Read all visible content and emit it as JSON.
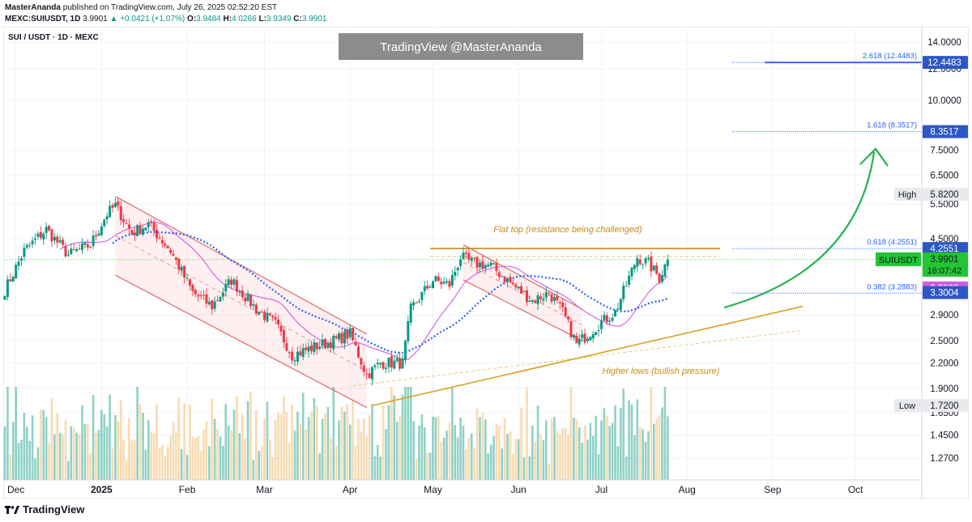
{
  "header": {
    "author": "MasterAnanda",
    "published": "published on TradingView.com, July 26, 2025 02:52:20 EST",
    "symbol_line": "MEXC:SUIUSDT, 1D",
    "last": "3.9901",
    "change": "+0.0421 (+1.07%)",
    "o_label": "O:",
    "o": "3.9484",
    "h_label": "H:",
    "h": "4.0266",
    "l_label": "L:",
    "l": "3.9349",
    "c_label": "C:",
    "c": "3.9901"
  },
  "chart_title": "SUI / USDT · 1D · MEXC",
  "watermark": "TradingView @MasterAnanda",
  "footer": {
    "brand": "TradingView",
    "logo_icon": "tradingview-logo-icon"
  },
  "colors": {
    "up": "#089981",
    "down": "#f23645",
    "sma_blue": "#2962ff",
    "ma_pink": "#d05ce3",
    "resistance": "#c78b18",
    "support": "#d8a020",
    "arrow": "#22b24c",
    "fib": "#2962ff",
    "channel": "#e05c5c",
    "price_label": "#22c533",
    "sma_label": "#2c57c5",
    "ma_label": "#d05ce3"
  },
  "chart_data": {
    "type": "candlestick",
    "scale": "log",
    "ylim": [
      1.12,
      15.3
    ],
    "y_ticks": [
      "14.0000",
      "12.0000",
      "10.0000",
      "7.5000",
      "6.5000",
      "5.5000",
      "4.5000",
      "2.9000",
      "2.5000",
      "2.2000",
      "1.9000",
      "1.6500",
      "1.4500",
      "1.2700"
    ],
    "x_ticks": [
      "Dec",
      "2025",
      "Feb",
      "Mar",
      "Apr",
      "May",
      "Jun",
      "Jul",
      "Aug",
      "Sep",
      "Oct"
    ],
    "x_range": [
      "2024-11-27",
      "2025-10-25"
    ],
    "anchors": [
      {
        "date": "2024-11-27",
        "close": 3.35
      },
      {
        "date": "2024-12-04",
        "close": 4.2
      },
      {
        "date": "2024-12-12",
        "close": 4.75
      },
      {
        "date": "2024-12-20",
        "close": 4.1
      },
      {
        "date": "2024-12-28",
        "close": 4.35
      },
      {
        "date": "2025-01-03",
        "close": 5.2
      },
      {
        "date": "2025-01-06",
        "close": 5.45
      },
      {
        "date": "2025-01-12",
        "close": 4.65
      },
      {
        "date": "2025-01-18",
        "close": 4.9
      },
      {
        "date": "2025-01-26",
        "close": 4.2
      },
      {
        "date": "2025-02-03",
        "close": 3.3
      },
      {
        "date": "2025-02-10",
        "close": 3.05
      },
      {
        "date": "2025-02-17",
        "close": 3.55
      },
      {
        "date": "2025-02-26",
        "close": 3.0
      },
      {
        "date": "2025-03-05",
        "close": 2.75
      },
      {
        "date": "2025-03-11",
        "close": 2.3
      },
      {
        "date": "2025-03-18",
        "close": 2.4
      },
      {
        "date": "2025-03-26",
        "close": 2.5
      },
      {
        "date": "2025-04-01",
        "close": 2.6
      },
      {
        "date": "2025-04-07",
        "close": 2.05
      },
      {
        "date": "2025-04-12",
        "close": 2.2
      },
      {
        "date": "2025-04-20",
        "close": 2.2
      },
      {
        "date": "2025-04-23",
        "close": 3.0
      },
      {
        "date": "2025-05-01",
        "close": 3.55
      },
      {
        "date": "2025-05-07",
        "close": 3.45
      },
      {
        "date": "2025-05-11",
        "close": 4.05
      },
      {
        "date": "2025-05-16",
        "close": 3.9
      },
      {
        "date": "2025-05-22",
        "close": 3.85
      },
      {
        "date": "2025-05-31",
        "close": 3.4
      },
      {
        "date": "2025-06-06",
        "close": 3.15
      },
      {
        "date": "2025-06-12",
        "close": 3.3
      },
      {
        "date": "2025-06-17",
        "close": 2.95
      },
      {
        "date": "2025-06-22",
        "close": 2.45
      },
      {
        "date": "2025-06-30",
        "close": 2.75
      },
      {
        "date": "2025-07-06",
        "close": 2.95
      },
      {
        "date": "2025-07-10",
        "close": 3.45
      },
      {
        "date": "2025-07-14",
        "close": 4.05
      },
      {
        "date": "2025-07-18",
        "close": 3.9
      },
      {
        "date": "2025-07-22",
        "close": 3.6
      },
      {
        "date": "2025-07-25",
        "close": 3.9901
      }
    ],
    "series": [
      {
        "name": "SUIUSDT",
        "value": "3.9901",
        "countdown": "16:07:42"
      }
    ],
    "price_labels": [
      {
        "label": "12.4483",
        "kind": "fib"
      },
      {
        "label": "8.3517",
        "kind": "fib"
      },
      {
        "label": "5.8200",
        "kind": "high"
      },
      {
        "label": "4.2551",
        "kind": "fib"
      },
      {
        "label": "3.3903",
        "kind": "ma_pink"
      },
      {
        "label": "3.3004",
        "kind": "sma_blue"
      },
      {
        "label": "1.7200",
        "kind": "low"
      }
    ],
    "price_values": [
      12.4483,
      8.3517,
      5.82,
      4.2551,
      3.3903,
      3.3004,
      1.72
    ],
    "high_label": "High",
    "low_label": "Low",
    "fib_levels": [
      {
        "label": "2.618 (12.4483)",
        "value": 12.4483
      },
      {
        "label": "1.618 (8.3517)",
        "value": 8.3517
      },
      {
        "label": "0.618 (4.2551)",
        "value": 4.2551
      },
      {
        "label": "0.382 (3.2883)",
        "value": 3.2883
      }
    ],
    "annotations": [
      {
        "text": "Flat top (resistance being challenged)",
        "color": "#c78b18"
      },
      {
        "text": "Higher lows (bullish pressure)",
        "color": "#c78b18"
      }
    ],
    "resistance": {
      "from": "2025-04-30",
      "to": "2025-08-13",
      "value": 4.2551
    },
    "support": {
      "from": "2025-04-09",
      "to": "2025-09-12",
      "start": 1.72,
      "end": 3.05
    },
    "channels": [
      {
        "from": "2025-01-06",
        "to": "2025-04-07",
        "top_start": 5.75,
        "top_end": 2.6,
        "bot_start": 3.65,
        "bot_end": 1.7
      },
      {
        "from": "2025-05-12",
        "to": "2025-06-24",
        "top_start": 4.35,
        "top_end": 3.0,
        "bot_start": 3.55,
        "bot_end": 2.5
      }
    ]
  }
}
